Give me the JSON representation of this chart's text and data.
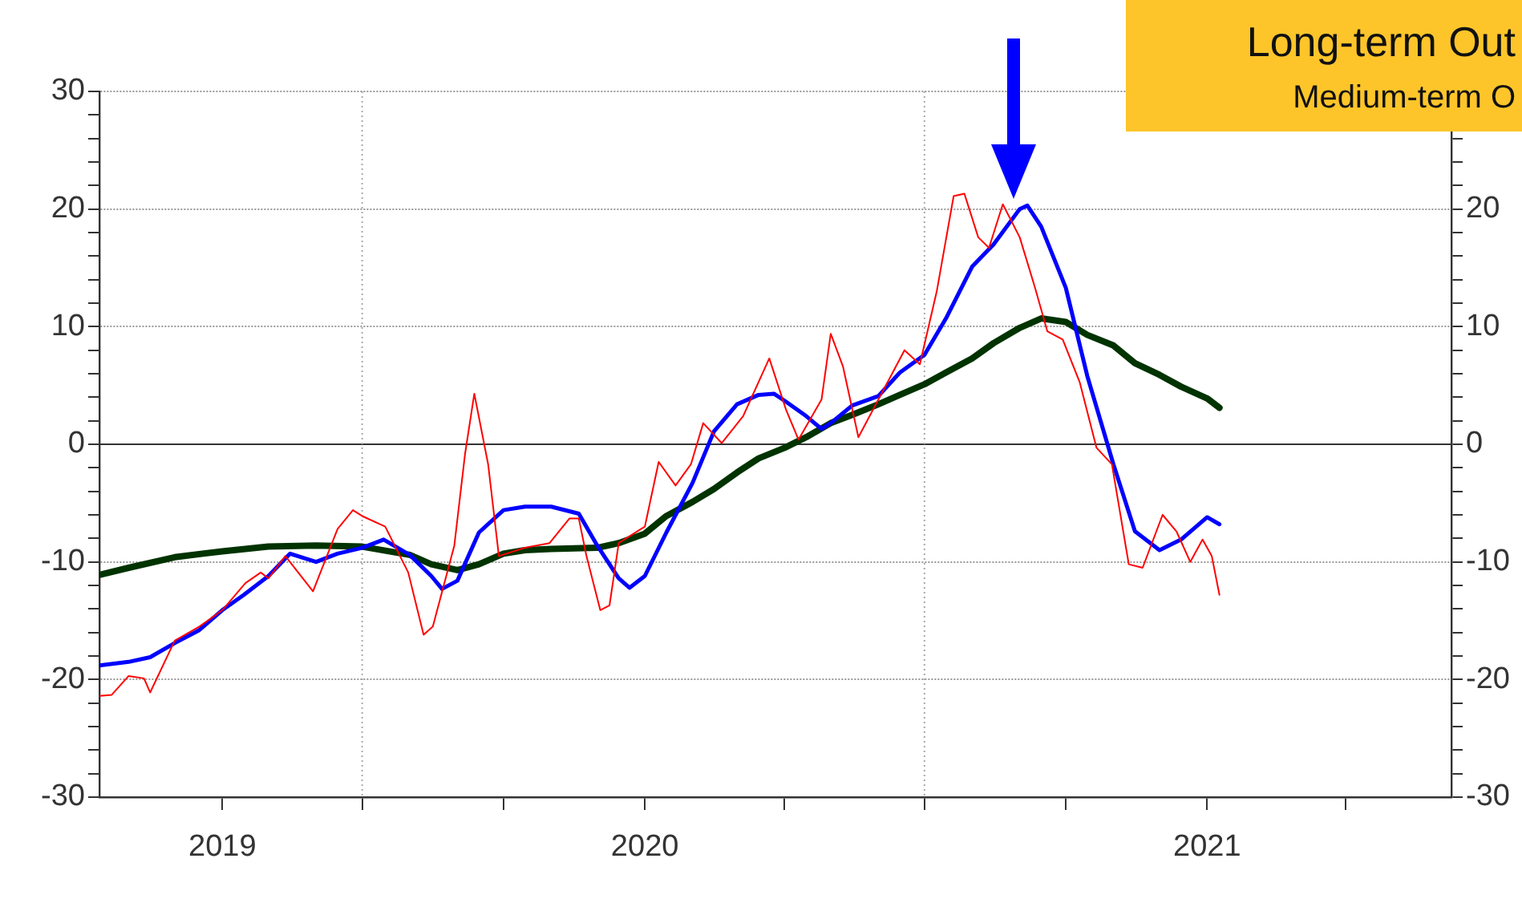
{
  "chart_data": {
    "type": "line",
    "annotations": [
      "Long-term Out",
      "Medium-term O"
    ],
    "xlim": [
      "2019-01-11",
      "2021-06-09"
    ],
    "xticks": [
      {
        "value": "2019-04-01",
        "label": "2019"
      },
      {
        "value": "2019-07-01",
        "label": null
      },
      {
        "value": "2019-10-01",
        "label": null
      },
      {
        "value": "2020-01-01",
        "label": "2020"
      },
      {
        "value": "2020-04-01",
        "label": null
      },
      {
        "value": "2020-07-01",
        "label": null
      },
      {
        "value": "2020-10-01",
        "label": null
      },
      {
        "value": "2021-01-01",
        "label": "2021"
      },
      {
        "value": "2021-04-01",
        "label": null
      }
    ],
    "ylim": [
      -30,
      30
    ],
    "yticks": [
      -30,
      {
        "value": -28,
        "label": null
      },
      {
        "value": -26,
        "label": null
      },
      {
        "value": -24,
        "label": null
      },
      {
        "value": -22,
        "label": null
      },
      -20,
      {
        "value": -18,
        "label": null
      },
      {
        "value": -16,
        "label": null
      },
      {
        "value": -14,
        "label": null
      },
      {
        "value": -12,
        "label": null
      },
      -10,
      {
        "value": -8,
        "label": null
      },
      {
        "value": -6,
        "label": null
      },
      {
        "value": -4,
        "label": null
      },
      {
        "value": -2,
        "label": null
      },
      0,
      {
        "value": 2,
        "label": null
      },
      {
        "value": 4,
        "label": null
      },
      {
        "value": 6,
        "label": null
      },
      {
        "value": 8,
        "label": null
      },
      10,
      {
        "value": 12,
        "label": null
      },
      {
        "value": 14,
        "label": null
      },
      {
        "value": 16,
        "label": null
      },
      {
        "value": 18,
        "label": null
      },
      20,
      {
        "value": 22,
        "label": null
      },
      {
        "value": 24,
        "label": null
      },
      {
        "value": 26,
        "label": null
      },
      {
        "value": 28,
        "label": null
      },
      30
    ],
    "y2lim": [
      -30,
      30
    ],
    "y2ticks": [
      -30,
      {
        "value": -28,
        "label": null
      },
      {
        "value": -26,
        "label": null
      },
      {
        "value": -24,
        "label": null
      },
      {
        "value": -22,
        "label": null
      },
      -20,
      {
        "value": -18,
        "label": null
      },
      {
        "value": -16,
        "label": null
      },
      {
        "value": -14,
        "label": null
      },
      {
        "value": -12,
        "label": null
      },
      -10,
      {
        "value": -8,
        "label": null
      },
      {
        "value": -6,
        "label": null
      },
      {
        "value": -4,
        "label": null
      },
      {
        "value": -2,
        "label": null
      },
      0,
      {
        "value": 2,
        "label": null
      },
      {
        "value": 4,
        "label": null
      },
      {
        "value": 6,
        "label": null
      },
      {
        "value": 8,
        "label": null
      },
      10,
      {
        "value": 12,
        "label": null
      },
      {
        "value": 14,
        "label": null
      },
      {
        "value": 16,
        "label": null
      },
      {
        "value": 18,
        "label": null
      },
      20,
      {
        "value": 22,
        "label": null
      },
      {
        "value": 24,
        "label": null
      },
      {
        "value": 26,
        "label": null
      },
      {
        "value": 28,
        "label": null
      },
      {
        "value": 30,
        "label": null
      }
    ],
    "grid": "y",
    "legend": false,
    "marker": "none",
    "line_style": "solid",
    "ref_lines": [
      {
        "axis": "y",
        "value": 0,
        "color": "#333333",
        "line_style": "solid"
      },
      {
        "axis": "x",
        "value": "2019-07-01",
        "color": "#aaaaaa",
        "line_style": "dotted"
      },
      {
        "axis": "x",
        "value": "2020-07-01",
        "color": "#aaaaaa",
        "line_style": "dotted"
      }
    ],
    "series": [
      {
        "color": "#ff0000",
        "x": [
          "2019-01-11",
          "2019-01-19",
          "2019-01-30",
          "2019-02-09",
          "2019-02-13",
          "2019-03-01",
          "2019-03-17",
          "2019-04-01",
          "2019-04-16",
          "2019-04-26",
          "2019-05-01",
          "2019-05-12",
          "2019-05-30",
          "2019-06-15",
          "2019-06-25",
          "2019-07-01",
          "2019-07-16",
          "2019-07-31",
          "2019-08-10",
          "2019-08-16",
          "2019-08-30",
          "2019-09-06",
          "2019-09-12",
          "2019-09-21",
          "2019-09-28",
          "2019-10-15",
          "2019-10-31",
          "2019-11-13",
          "2019-11-19",
          "2019-11-24",
          "2019-12-03",
          "2019-12-09",
          "2019-12-15",
          "2020-01-01",
          "2020-01-10",
          "2020-01-21",
          "2020-01-31",
          "2020-02-08",
          "2020-02-20",
          "2020-03-05",
          "2020-03-22",
          "2020-04-02",
          "2020-04-10",
          "2020-04-25",
          "2020-05-01",
          "2020-05-09",
          "2020-05-19",
          "2020-06-01",
          "2020-06-18",
          "2020-06-28",
          "2020-07-09",
          "2020-07-20",
          "2020-07-27",
          "2020-08-05",
          "2020-08-12",
          "2020-08-21",
          "2020-09-01",
          "2020-09-11",
          "2020-09-19",
          "2020-09-29",
          "2020-10-10",
          "2020-10-21",
          "2020-10-31",
          "2020-11-11",
          "2020-11-20",
          "2020-12-03",
          "2020-12-12",
          "2020-12-21",
          "2020-12-29",
          "2021-01-04",
          "2021-01-09"
        ],
        "values": [
          -21.4,
          -21.3,
          -19.7,
          -19.9,
          -21.1,
          -16.7,
          -15.5,
          -14.1,
          -11.8,
          -10.9,
          -11.4,
          -9.5,
          -12.5,
          -7.2,
          -5.6,
          -6.1,
          -7.0,
          -10.9,
          -16.2,
          -15.5,
          -8.6,
          -0.8,
          4.3,
          -1.7,
          -9.5,
          -8.8,
          -8.4,
          -6.3,
          -6.3,
          -9.5,
          -14.1,
          -13.7,
          -8.4,
          -7.0,
          -1.5,
          -3.5,
          -1.7,
          1.8,
          0.1,
          2.4,
          7.3,
          2.9,
          0.4,
          3.8,
          9.4,
          6.6,
          0.6,
          3.8,
          8.0,
          6.8,
          13.0,
          21.1,
          21.3,
          17.6,
          16.7,
          20.4,
          17.6,
          13.3,
          9.6,
          8.9,
          5.3,
          -0.3,
          -1.7,
          -10.2,
          -10.5,
          -6.0,
          -7.4,
          -10.0,
          -8.1,
          -9.5,
          -12.8
        ]
      },
      {
        "color": "#0000ff",
        "x": [
          "2019-01-11",
          "2019-01-30",
          "2019-02-13",
          "2019-03-01",
          "2019-03-17",
          "2019-04-01",
          "2019-04-15",
          "2019-05-01",
          "2019-05-15",
          "2019-06-01",
          "2019-06-15",
          "2019-07-01",
          "2019-07-15",
          "2019-08-01",
          "2019-08-15",
          "2019-08-22",
          "2019-09-01",
          "2019-09-15",
          "2019-10-01",
          "2019-10-15",
          "2019-11-01",
          "2019-11-19",
          "2019-12-01",
          "2019-12-15",
          "2019-12-22",
          "2020-01-01",
          "2020-01-15",
          "2020-02-01",
          "2020-02-15",
          "2020-03-01",
          "2020-03-15",
          "2020-03-25",
          "2020-04-01",
          "2020-04-15",
          "2020-04-25",
          "2020-05-01",
          "2020-05-15",
          "2020-06-01",
          "2020-06-15",
          "2020-07-01",
          "2020-07-15",
          "2020-08-01",
          "2020-08-15",
          "2020-09-01",
          "2020-09-06",
          "2020-09-15",
          "2020-10-01",
          "2020-10-15",
          "2020-11-01",
          "2020-11-15",
          "2020-12-01",
          "2020-12-15",
          "2021-01-01",
          "2021-01-09"
        ],
        "values": [
          -18.8,
          -18.5,
          -18.1,
          -16.9,
          -15.8,
          -14.1,
          -12.8,
          -11.2,
          -9.3,
          -10.0,
          -9.3,
          -8.8,
          -8.1,
          -9.4,
          -11.2,
          -12.3,
          -11.6,
          -7.5,
          -5.6,
          -5.3,
          -5.3,
          -5.9,
          -8.6,
          -11.4,
          -12.2,
          -11.2,
          -7.5,
          -3.3,
          1.1,
          3.4,
          4.2,
          4.3,
          3.7,
          2.4,
          1.3,
          1.8,
          3.3,
          4.1,
          6.1,
          7.6,
          10.7,
          15.1,
          17.0,
          20.0,
          20.3,
          18.5,
          13.3,
          5.8,
          -1.7,
          -7.4,
          -9.0,
          -8.1,
          -6.2,
          -6.8
        ]
      },
      {
        "color": "#003300",
        "x": [
          "2019-01-11",
          "2019-01-30",
          "2019-03-01",
          "2019-04-01",
          "2019-05-01",
          "2019-06-01",
          "2019-07-01",
          "2019-08-01",
          "2019-08-15",
          "2019-09-01",
          "2019-09-15",
          "2019-10-01",
          "2019-10-15",
          "2019-11-01",
          "2019-12-01",
          "2019-12-15",
          "2020-01-01",
          "2020-01-15",
          "2020-02-01",
          "2020-02-15",
          "2020-03-01",
          "2020-03-15",
          "2020-04-01",
          "2020-04-15",
          "2020-05-01",
          "2020-05-15",
          "2020-06-01",
          "2020-06-15",
          "2020-07-01",
          "2020-07-15",
          "2020-08-01",
          "2020-08-15",
          "2020-09-01",
          "2020-09-15",
          "2020-10-01",
          "2020-10-15",
          "2020-11-01",
          "2020-11-15",
          "2020-12-01",
          "2020-12-15",
          "2021-01-01",
          "2021-01-09"
        ],
        "values": [
          -11.1,
          -10.5,
          -9.6,
          -9.1,
          -8.7,
          -8.6,
          -8.7,
          -9.4,
          -10.2,
          -10.7,
          -10.2,
          -9.3,
          -9.0,
          -8.9,
          -8.8,
          -8.4,
          -7.6,
          -6.1,
          -4.9,
          -3.8,
          -2.4,
          -1.2,
          -0.3,
          0.6,
          1.8,
          2.5,
          3.4,
          4.2,
          5.1,
          6.1,
          7.3,
          8.6,
          9.9,
          10.7,
          10.4,
          9.3,
          8.4,
          6.9,
          5.9,
          4.9,
          3.9,
          3.1
        ]
      }
    ]
  }
}
